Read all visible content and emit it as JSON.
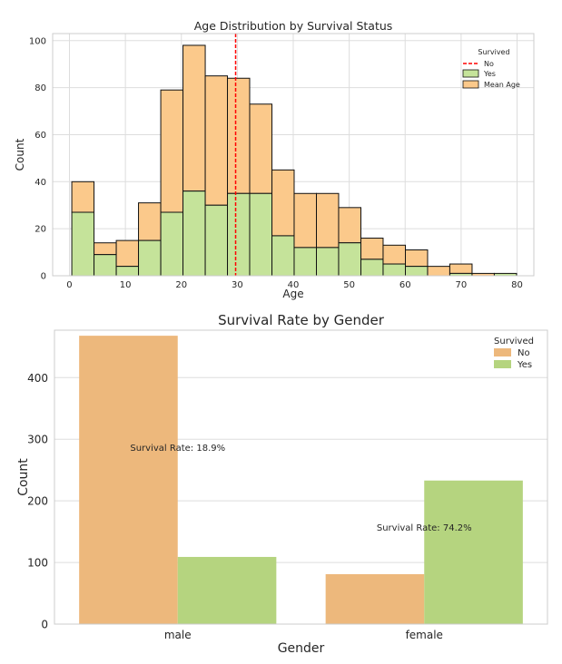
{
  "chart_data": [
    {
      "type": "bar",
      "subtype": "stacked-histogram",
      "title": "Age Distribution by Survival Status",
      "xlabel": "Age",
      "ylabel": "Count",
      "xlim": [
        -3,
        83
      ],
      "ylim": [
        0,
        103
      ],
      "xticks": [
        0,
        10,
        20,
        30,
        40,
        50,
        60,
        70,
        80
      ],
      "yticks": [
        0,
        20,
        40,
        60,
        80,
        100
      ],
      "grid": true,
      "bin_edges": [
        0.42,
        4.39,
        8.37,
        12.34,
        16.32,
        20.29,
        24.27,
        28.24,
        32.21,
        36.19,
        40.16,
        44.14,
        48.11,
        52.09,
        56.06,
        60.04,
        64.01,
        67.98,
        71.96,
        75.93,
        79.91
      ],
      "series": [
        {
          "name": "Yes",
          "color": "#c5e39a",
          "values": [
            27,
            9,
            4,
            15,
            27,
            36,
            30,
            35,
            35,
            17,
            12,
            12,
            14,
            7,
            5,
            4,
            0,
            1,
            0,
            1
          ]
        },
        {
          "name": "Mean Age",
          "color": "#fbc98b",
          "values": [
            13,
            5,
            11,
            16,
            52,
            62,
            55,
            49,
            38,
            28,
            23,
            23,
            15,
            9,
            8,
            7,
            4,
            4,
            1,
            0
          ]
        }
      ],
      "mean_line": {
        "x": 29.7,
        "color": "#ff0000",
        "label": "No"
      },
      "legend": {
        "title": "Survived",
        "placement": "top-right",
        "entries": [
          "No",
          "Yes",
          "Mean Age"
        ]
      }
    },
    {
      "type": "bar",
      "subtype": "grouped",
      "title": "Survival Rate by Gender",
      "xlabel": "Gender",
      "ylabel": "Count",
      "categories": [
        "male",
        "female"
      ],
      "ylim": [
        0,
        477
      ],
      "yticks": [
        0,
        100,
        200,
        300,
        400
      ],
      "grid": true,
      "series": [
        {
          "name": "No",
          "color": "#edb87c",
          "values": [
            468,
            81
          ]
        },
        {
          "name": "Yes",
          "color": "#b5d47f",
          "values": [
            109,
            233
          ]
        }
      ],
      "annotations": [
        "Survival Rate: 18.9%",
        "Survival Rate: 74.2%"
      ],
      "legend": {
        "title": "Survived",
        "placement": "top-right",
        "entries": [
          "No",
          "Yes"
        ]
      }
    }
  ]
}
